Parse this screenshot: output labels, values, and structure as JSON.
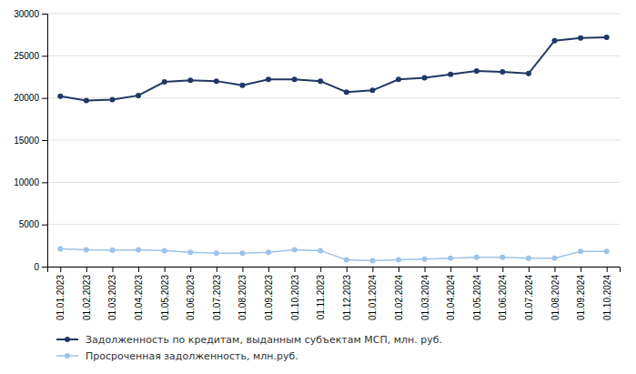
{
  "chart_data": {
    "type": "line",
    "categories": [
      "01.01.2023",
      "01.02.2023",
      "01.03.2023",
      "01.04.2023",
      "01.05.2023",
      "01.06.2023",
      "01.07.2023",
      "01.08.2023",
      "01.09.2023",
      "01.10.2023",
      "01.11.2023",
      "01.12.2023",
      "01.01.2024",
      "01.02.2024",
      "01.03.2024",
      "01.04.2024",
      "01.05.2024",
      "01.06.2024",
      "01.07.2024",
      "01.08.2024",
      "01.09.2024",
      "01.10.2024"
    ],
    "series": [
      {
        "name": "Задолженность по кредитам, выданным субъектам МСП, млн. руб.",
        "color": "#1F3864",
        "marker": "circle",
        "values": [
          20200,
          19700,
          19800,
          20300,
          21900,
          22100,
          22000,
          21500,
          22200,
          22200,
          22000,
          20700,
          20900,
          22200,
          22400,
          22800,
          23200,
          23100,
          22900,
          26800,
          27100,
          27200
        ]
      },
      {
        "name": "Просроченная задолженность, млн.руб.",
        "color": "#9DC3E6",
        "marker": "circle",
        "values": [
          2100,
          2000,
          1950,
          2000,
          1900,
          1700,
          1600,
          1600,
          1700,
          2000,
          1900,
          800,
          700,
          800,
          900,
          1000,
          1100,
          1100,
          1000,
          1000,
          1800,
          1800
        ]
      }
    ],
    "ylim": [
      0,
      30000
    ],
    "yticks": [
      0,
      5000,
      10000,
      15000,
      20000,
      25000,
      30000
    ],
    "grid": true,
    "legend": "bottom"
  }
}
